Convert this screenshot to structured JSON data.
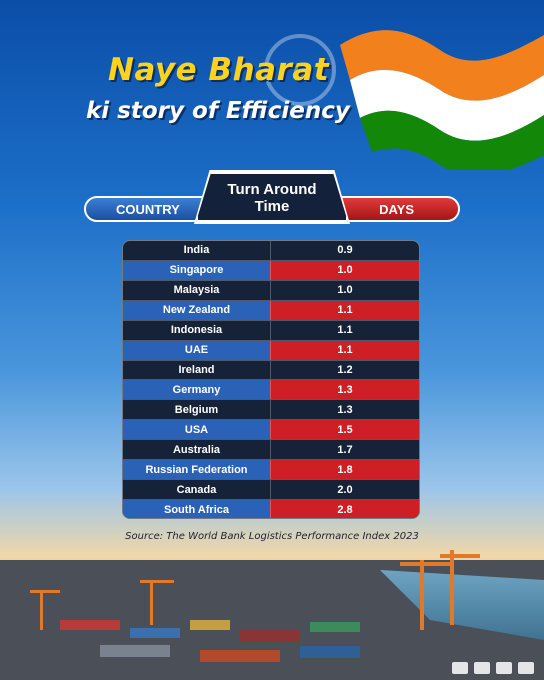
{
  "title": {
    "line1": "Naye Bharat",
    "line2": "ki story of Efficiency"
  },
  "headers": {
    "country": "COUNTRY",
    "metric": "Turn Around Time",
    "days": "DAYS"
  },
  "source": "Source: The World Bank Logistics Performance Index 2023",
  "colors": {
    "row_dark": "#162238",
    "row_blue": "#2a62b8",
    "row_red": "#cf1f26",
    "title_yellow": "#ffd21e",
    "saffron": "#f2811d",
    "green": "#138808"
  },
  "chart_data": {
    "type": "table",
    "title": "Turn Around Time",
    "columns": [
      "COUNTRY",
      "DAYS"
    ],
    "categories": [
      "India",
      "Singapore",
      "Malaysia",
      "New Zealand",
      "Indonesia",
      "UAE",
      "Ireland",
      "Germany",
      "Belgium",
      "USA",
      "Australia",
      "Russian Federation",
      "Canada",
      "South Africa"
    ],
    "values": [
      "0.9",
      "1.0",
      "1.0",
      "1.1",
      "1.1",
      "1.1",
      "1.2",
      "1.3",
      "1.3",
      "1.5",
      "1.7",
      "1.8",
      "2.0",
      "2.8"
    ]
  }
}
